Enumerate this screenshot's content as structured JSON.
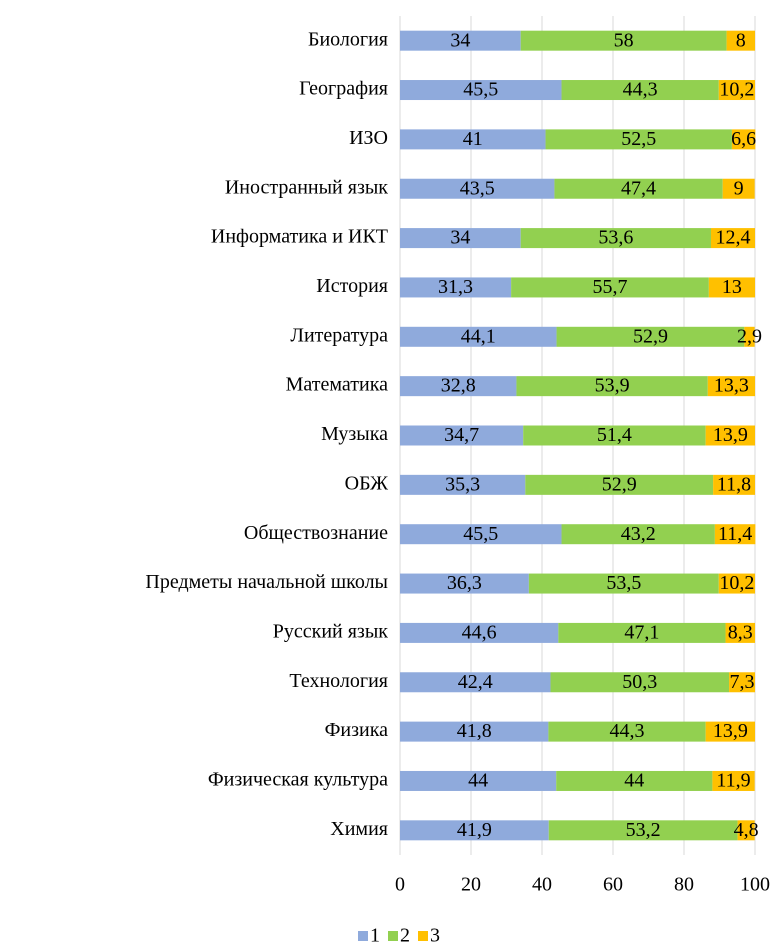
{
  "chart_data": {
    "type": "stacked_barh",
    "categories": [
      "Биология",
      "География",
      "ИЗО",
      "Иностранный язык",
      "Информатика и ИКТ",
      "История",
      "Литература",
      "Математика",
      "Музыка",
      "ОБЖ",
      "Обществознание",
      "Предметы начальной школы",
      "Русский язык",
      "Технология",
      "Физика",
      "Физическая культура",
      "Химия"
    ],
    "series": [
      {
        "name": "1",
        "color": "#8faadc",
        "values": [
          34,
          45.5,
          41,
          43.5,
          34,
          31.3,
          44.1,
          32.8,
          34.7,
          35.3,
          45.5,
          36.3,
          44.6,
          42.4,
          41.8,
          44,
          41.9
        ],
        "value_labels": [
          "34",
          "45,5",
          "41",
          "43,5",
          "34",
          "31,3",
          "44,1",
          "32,8",
          "34,7",
          "35,3",
          "45,5",
          "36,3",
          "44,6",
          "42,4",
          "41,8",
          "44",
          "41,9"
        ]
      },
      {
        "name": "2",
        "color": "#92d050",
        "values": [
          58,
          44.3,
          52.5,
          47.4,
          53.6,
          55.7,
          52.9,
          53.9,
          51.4,
          52.9,
          43.2,
          53.5,
          47.1,
          50.3,
          44.3,
          44,
          53.2
        ],
        "value_labels": [
          "58",
          "44,3",
          "52,5",
          "47,4",
          "53,6",
          "55,7",
          "52,9",
          "53,9",
          "51,4",
          "52,9",
          "43,2",
          "53,5",
          "47,1",
          "50,3",
          "44,3",
          "44",
          "53,2"
        ]
      },
      {
        "name": "3",
        "color": "#ffc000",
        "values": [
          8,
          10.2,
          6.6,
          9,
          12.4,
          13,
          2.9,
          13.3,
          13.9,
          11.8,
          11.4,
          10.2,
          8.3,
          7.3,
          13.9,
          11.9,
          4.8
        ],
        "value_labels": [
          "8",
          "10,2",
          "6,6",
          "9",
          "12,4",
          "13",
          "2,9",
          "13,3",
          "13,9",
          "11,8",
          "11,4",
          "10,2",
          "8,3",
          "7,3",
          "13,9",
          "11,9",
          "4,8"
        ]
      }
    ],
    "xlim": [
      0,
      100
    ],
    "xticks": [
      0,
      20,
      40,
      60,
      80,
      100
    ],
    "grid": true,
    "legend": "bottom"
  }
}
